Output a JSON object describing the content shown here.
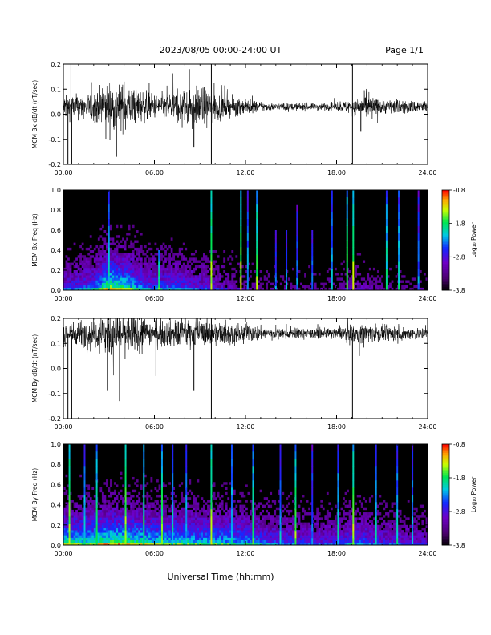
{
  "header": {
    "title": "2023/08/05  00:00-24:00 UT",
    "page": "Page 1/1"
  },
  "footer": {
    "xlabel": "Universal Time (hh:mm)"
  },
  "chart_data": [
    {
      "type": "line",
      "ylabel": "MCM Bx dB/dt (nT/sec)",
      "ylim": [
        -0.2,
        0.2
      ],
      "yticks": [
        "-0.2",
        "-0.1",
        "0.0",
        "0.1",
        "0.2"
      ],
      "xlim": [
        0,
        24
      ],
      "xticks": [
        "00:00",
        "06:00",
        "12:00",
        "18:00",
        "24:00"
      ],
      "baseline": 0.03,
      "noise_profile_hours": [
        0,
        1,
        2,
        3,
        4,
        5,
        6,
        7,
        8,
        9,
        10,
        11,
        12,
        13,
        14,
        15,
        16,
        17,
        18,
        19,
        20,
        21,
        22,
        23,
        24
      ],
      "noise_profile_amplitude": [
        0.05,
        0.05,
        0.06,
        0.1,
        0.09,
        0.07,
        0.05,
        0.06,
        0.07,
        0.08,
        0.06,
        0.04,
        0.03,
        0.02,
        0.015,
        0.015,
        0.015,
        0.015,
        0.015,
        0.03,
        0.05,
        0.03,
        0.03,
        0.025,
        0.025
      ],
      "spikes": [
        {
          "x": 0.3,
          "y": -0.2
        },
        {
          "x": 0.5,
          "y": 0.2
        },
        {
          "x": 0.55,
          "y": -0.2
        },
        {
          "x": 3.5,
          "y": -0.17
        },
        {
          "x": 4.0,
          "y": 0.13
        },
        {
          "x": 8.3,
          "y": 0.18
        },
        {
          "x": 8.6,
          "y": -0.13
        },
        {
          "x": 9.75,
          "y": 0.2
        },
        {
          "x": 9.75,
          "y": -0.2
        },
        {
          "x": 19.05,
          "y": 0.2
        },
        {
          "x": 19.05,
          "y": -0.2
        },
        {
          "x": 19.6,
          "y": -0.07
        }
      ]
    },
    {
      "type": "heatmap",
      "ylabel": "MCM Bx Freq (Hz)",
      "ylim": [
        0,
        1.0
      ],
      "yticks": [
        "0.0",
        "0.2",
        "0.4",
        "0.6",
        "0.8",
        "1.0"
      ],
      "xlim": [
        0,
        24
      ],
      "xticks": [
        "00:00",
        "06:00",
        "12:00",
        "18:00",
        "24:00"
      ],
      "colorbar": {
        "label": "Log₁₀ Power",
        "ticks": [
          "-0.8",
          "-1.8",
          "-2.8",
          "-3.8"
        ],
        "range": [
          -3.8,
          -0.8
        ]
      },
      "activity_profile": [
        0.35,
        0.4,
        0.45,
        0.75,
        0.65,
        0.5,
        0.4,
        0.45,
        0.4,
        0.35,
        0.3,
        0.25,
        0.2,
        0.15,
        0.15,
        0.15,
        0.15,
        0.15,
        0.15,
        0.25,
        0.2,
        0.15,
        0.15,
        0.15,
        0.15
      ],
      "streaks": [
        {
          "x": 3.0,
          "top": 1.0,
          "level": 0.6
        },
        {
          "x": 6.3,
          "top": 0.4,
          "level": 0.7
        },
        {
          "x": 9.75,
          "top": 1.0,
          "level": 0.8
        },
        {
          "x": 11.7,
          "top": 1.0,
          "level": 0.8
        },
        {
          "x": 12.15,
          "top": 1.0,
          "level": 0.55
        },
        {
          "x": 12.75,
          "top": 1.0,
          "level": 0.75
        },
        {
          "x": 14.0,
          "top": 0.6,
          "level": 0.5
        },
        {
          "x": 14.7,
          "top": 0.6,
          "level": 0.5
        },
        {
          "x": 15.4,
          "top": 0.85,
          "level": 0.5
        },
        {
          "x": 16.4,
          "top": 0.6,
          "level": 0.5
        },
        {
          "x": 17.7,
          "top": 1.0,
          "level": 0.55
        },
        {
          "x": 18.7,
          "top": 1.0,
          "level": 0.75
        },
        {
          "x": 19.1,
          "top": 1.0,
          "level": 0.8
        },
        {
          "x": 21.3,
          "top": 1.0,
          "level": 0.65
        },
        {
          "x": 22.1,
          "top": 1.0,
          "level": 0.6
        },
        {
          "x": 23.4,
          "top": 1.0,
          "level": 0.5
        }
      ]
    },
    {
      "type": "line",
      "ylabel": "MCM By dB/dt (nT/sec)",
      "ylim": [
        -0.2,
        0.2
      ],
      "yticks": [
        "-0.2",
        "-0.1",
        "0.0",
        "0.1",
        "0.2"
      ],
      "xlim": [
        0,
        24
      ],
      "xticks": [
        "00:00",
        "06:00",
        "12:00",
        "18:00",
        "24:00"
      ],
      "baseline": 0.14,
      "noise_profile_hours": [
        0,
        1,
        2,
        3,
        4,
        5,
        6,
        7,
        8,
        9,
        10,
        11,
        12,
        13,
        14,
        15,
        16,
        17,
        18,
        19,
        20,
        21,
        22,
        23,
        24
      ],
      "noise_profile_amplitude": [
        0.05,
        0.05,
        0.06,
        0.09,
        0.09,
        0.07,
        0.05,
        0.06,
        0.06,
        0.05,
        0.05,
        0.04,
        0.04,
        0.03,
        0.02,
        0.02,
        0.02,
        0.02,
        0.02,
        0.035,
        0.04,
        0.03,
        0.03,
        0.025,
        0.025
      ],
      "spikes": [
        {
          "x": 0.3,
          "y": -0.2
        },
        {
          "x": 0.55,
          "y": -0.2
        },
        {
          "x": 2.9,
          "y": -0.09
        },
        {
          "x": 3.7,
          "y": -0.13
        },
        {
          "x": 6.1,
          "y": -0.03
        },
        {
          "x": 8.6,
          "y": -0.09
        },
        {
          "x": 9.75,
          "y": 0.2
        },
        {
          "x": 9.75,
          "y": -0.2
        },
        {
          "x": 19.05,
          "y": -0.2
        },
        {
          "x": 19.5,
          "y": 0.05
        }
      ]
    },
    {
      "type": "heatmap",
      "ylabel": "MCM By Freq (Hz)",
      "ylim": [
        0,
        1.0
      ],
      "yticks": [
        "0.0",
        "0.2",
        "0.4",
        "0.6",
        "0.8",
        "1.0"
      ],
      "xlim": [
        0,
        24
      ],
      "xticks": [
        "00:00",
        "06:00",
        "12:00",
        "18:00",
        "24:00"
      ],
      "colorbar": {
        "label": "Log₁₀ Power",
        "ticks": [
          "-0.8",
          "-1.8",
          "-2.8",
          "-3.8"
        ],
        "range": [
          -3.8,
          -0.8
        ]
      },
      "activity_profile": [
        0.65,
        0.6,
        0.65,
        0.7,
        0.7,
        0.65,
        0.6,
        0.6,
        0.6,
        0.55,
        0.55,
        0.55,
        0.5,
        0.45,
        0.4,
        0.4,
        0.35,
        0.35,
        0.35,
        0.45,
        0.4,
        0.35,
        0.35,
        0.3,
        0.3
      ],
      "streaks": [
        {
          "x": 0.4,
          "top": 1.0,
          "level": 0.8
        },
        {
          "x": 1.4,
          "top": 1.0,
          "level": 0.6
        },
        {
          "x": 2.2,
          "top": 1.0,
          "level": 0.7
        },
        {
          "x": 4.1,
          "top": 1.0,
          "level": 0.8
        },
        {
          "x": 5.3,
          "top": 1.0,
          "level": 0.7
        },
        {
          "x": 6.5,
          "top": 1.0,
          "level": 0.75
        },
        {
          "x": 7.2,
          "top": 1.0,
          "level": 0.6
        },
        {
          "x": 8.1,
          "top": 1.0,
          "level": 0.55
        },
        {
          "x": 9.75,
          "top": 1.0,
          "level": 0.8
        },
        {
          "x": 11.1,
          "top": 1.0,
          "level": 0.6
        },
        {
          "x": 12.5,
          "top": 1.0,
          "level": 0.7
        },
        {
          "x": 14.3,
          "top": 1.0,
          "level": 0.55
        },
        {
          "x": 15.3,
          "top": 1.0,
          "level": 0.75
        },
        {
          "x": 16.4,
          "top": 1.0,
          "level": 0.5
        },
        {
          "x": 18.1,
          "top": 1.0,
          "level": 0.6
        },
        {
          "x": 19.1,
          "top": 1.0,
          "level": 0.8
        },
        {
          "x": 20.6,
          "top": 1.0,
          "level": 0.6
        },
        {
          "x": 22.0,
          "top": 1.0,
          "level": 0.6
        },
        {
          "x": 23.0,
          "top": 1.0,
          "level": 0.55
        }
      ]
    }
  ]
}
